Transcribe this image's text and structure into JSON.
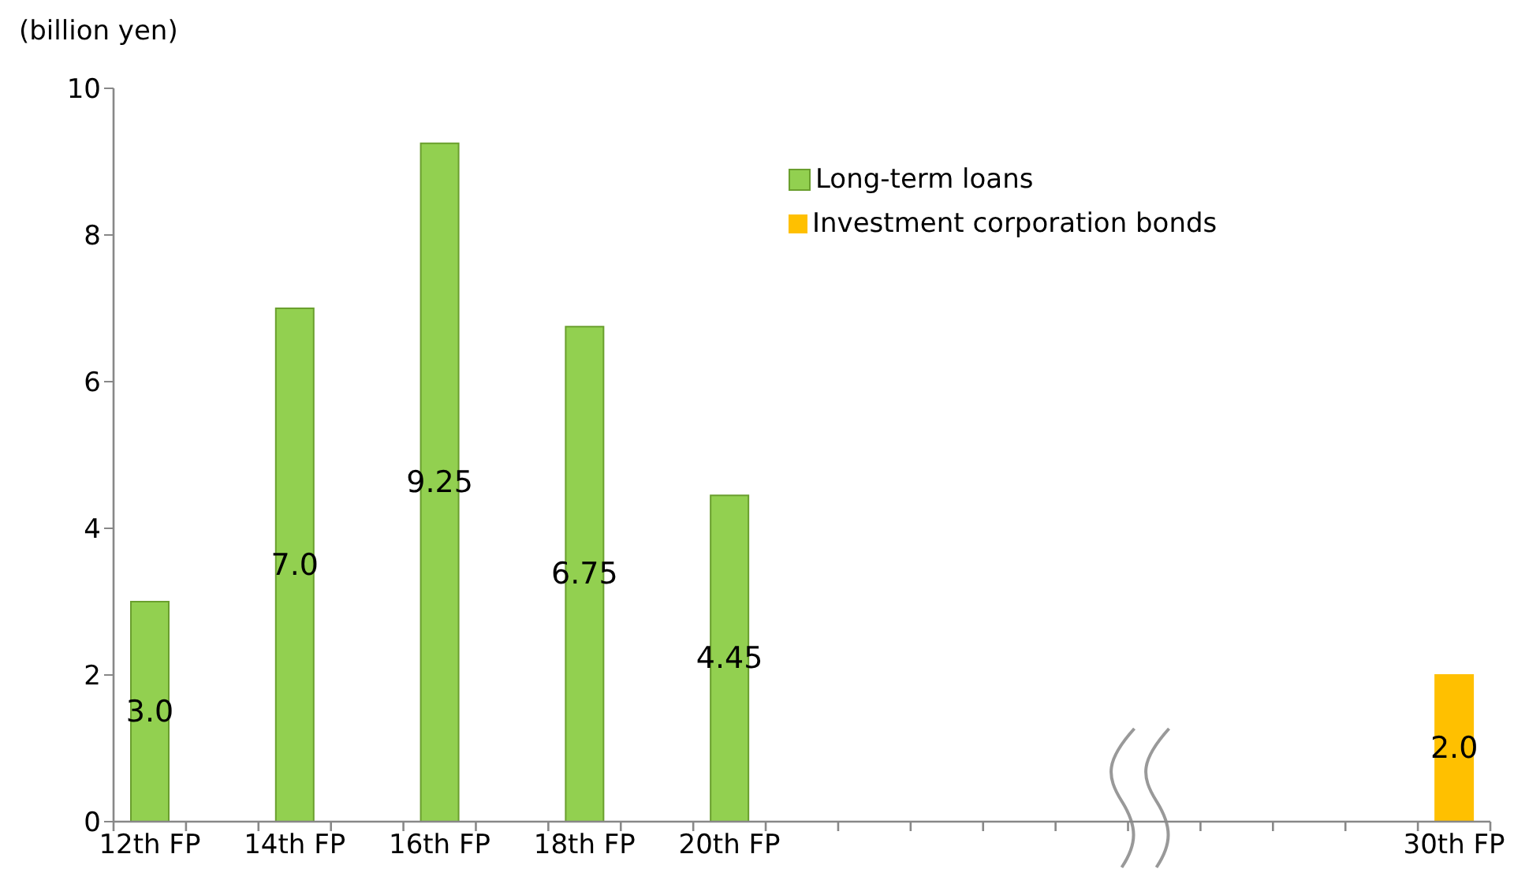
{
  "chart_data": {
    "type": "bar",
    "ylabel": "(billion yen)",
    "categories": [
      "12th FP",
      null,
      "14th FP",
      null,
      "16th FP",
      null,
      "18th FP",
      null,
      "20th FP",
      null,
      null,
      null,
      null,
      null,
      null,
      null,
      null,
      null,
      "30th FP"
    ],
    "series": [
      {
        "name": "Long-term loans",
        "color": "#92d050",
        "values": [
          3.0,
          null,
          7.0,
          null,
          9.25,
          null,
          6.75,
          null,
          4.45,
          null,
          null,
          null,
          null,
          null,
          null,
          null,
          null,
          null,
          null
        ],
        "value_labels": [
          "3.0",
          null,
          "7.0",
          null,
          "9.25",
          null,
          "6.75",
          null,
          "4.45",
          null,
          null,
          null,
          null,
          null,
          null,
          null,
          null,
          null,
          null
        ]
      },
      {
        "name": "Investment corporation bonds",
        "color": "#ffc000",
        "values": [
          null,
          null,
          null,
          null,
          null,
          null,
          null,
          null,
          null,
          null,
          null,
          null,
          null,
          null,
          null,
          null,
          null,
          null,
          2.0
        ],
        "value_labels": [
          null,
          null,
          null,
          null,
          null,
          null,
          null,
          null,
          null,
          null,
          null,
          null,
          null,
          null,
          null,
          null,
          null,
          null,
          "2.0"
        ]
      }
    ],
    "ylim": [
      0,
      10
    ],
    "yticks": [
      0,
      2,
      4,
      6,
      8,
      10
    ],
    "grid": false,
    "legend": "top right"
  }
}
